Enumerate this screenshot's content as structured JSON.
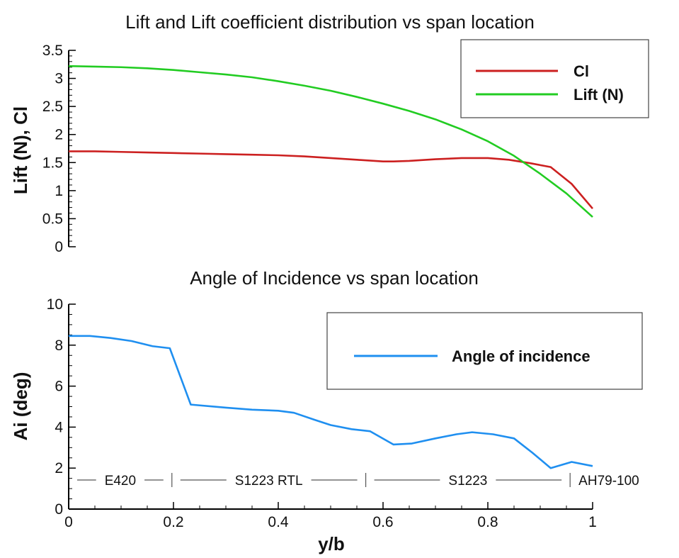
{
  "chart_data": [
    {
      "type": "line",
      "title": "Lift and Lift coefficient distribution vs span location",
      "ylabel": "Lift (N), Cl",
      "xlim": [
        0,
        1
      ],
      "ylim": [
        0,
        3.5
      ],
      "yticks": [
        "0",
        "0.5",
        "1",
        "1.5",
        "2",
        "2.5",
        "3",
        "3.5"
      ],
      "yticks_values": [
        0,
        0.5,
        1,
        1.5,
        2,
        2.5,
        3,
        3.5
      ],
      "grid": false,
      "legend": "top-right",
      "series": [
        {
          "name": "Cl",
          "color": "#cc2020",
          "x": [
            0,
            0.05,
            0.1,
            0.15,
            0.2,
            0.25,
            0.3,
            0.35,
            0.4,
            0.45,
            0.5,
            0.55,
            0.6,
            0.62,
            0.65,
            0.7,
            0.75,
            0.8,
            0.84,
            0.88,
            0.92,
            0.96,
            1.0
          ],
          "y": [
            1.7,
            1.7,
            1.69,
            1.68,
            1.67,
            1.66,
            1.65,
            1.64,
            1.63,
            1.61,
            1.58,
            1.55,
            1.52,
            1.52,
            1.53,
            1.56,
            1.58,
            1.58,
            1.55,
            1.49,
            1.42,
            1.12,
            0.68
          ]
        },
        {
          "name": "Lift (N)",
          "color": "#22cc22",
          "x": [
            0,
            0.05,
            0.1,
            0.15,
            0.2,
            0.25,
            0.3,
            0.35,
            0.4,
            0.45,
            0.5,
            0.55,
            0.6,
            0.65,
            0.7,
            0.75,
            0.8,
            0.85,
            0.9,
            0.95,
            1.0
          ],
          "y": [
            3.22,
            3.21,
            3.2,
            3.18,
            3.15,
            3.11,
            3.07,
            3.02,
            2.95,
            2.87,
            2.78,
            2.67,
            2.55,
            2.42,
            2.27,
            2.09,
            1.88,
            1.62,
            1.3,
            0.95,
            0.53
          ]
        }
      ]
    },
    {
      "type": "line",
      "title": "Angle of Incidence vs span location",
      "xlabel": "y/b",
      "ylabel": "Ai (deg)",
      "xlim": [
        0,
        1
      ],
      "ylim": [
        0,
        10
      ],
      "xticks": [
        "0",
        "0.2",
        "0.4",
        "0.6",
        "0.8",
        "1"
      ],
      "xticks_values": [
        0,
        0.2,
        0.4,
        0.6,
        0.8,
        1
      ],
      "yticks": [
        "0",
        "2",
        "4",
        "6",
        "8",
        "10"
      ],
      "yticks_values": [
        0,
        2,
        4,
        6,
        8,
        10
      ],
      "grid": false,
      "legend": "top-right",
      "series": [
        {
          "name": "Angle of incidence",
          "color": "#1f8ff0",
          "x": [
            0,
            0.04,
            0.08,
            0.12,
            0.16,
            0.193,
            0.233,
            0.3,
            0.35,
            0.4,
            0.43,
            0.47,
            0.5,
            0.54,
            0.575,
            0.62,
            0.655,
            0.7,
            0.74,
            0.77,
            0.81,
            0.85,
            0.885,
            0.92,
            0.96,
            1.0
          ],
          "y": [
            8.45,
            8.45,
            8.35,
            8.2,
            7.95,
            7.85,
            5.1,
            4.95,
            4.85,
            4.8,
            4.7,
            4.35,
            4.1,
            3.9,
            3.8,
            3.15,
            3.2,
            3.45,
            3.65,
            3.75,
            3.65,
            3.45,
            2.75,
            2.0,
            2.3,
            2.1
          ]
        }
      ],
      "annotations": {
        "sections": [
          {
            "label": "E420",
            "start": 0.0,
            "end": 0.197
          },
          {
            "label": "S1223 RTL",
            "start": 0.197,
            "end": 0.567
          },
          {
            "label": "S1223",
            "start": 0.567,
            "end": 0.957
          },
          {
            "label": "AH79-100",
            "start": 0.957,
            "end": 1.0
          }
        ]
      }
    }
  ]
}
